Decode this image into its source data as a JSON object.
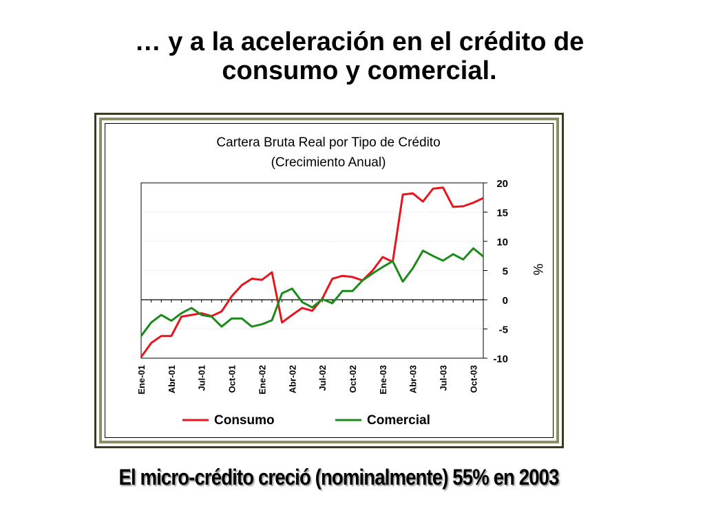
{
  "slide": {
    "title_line1": "… y a la aceleración en el crédito de",
    "title_line2": "consumo y  comercial.",
    "footer": "El micro-crédito creció (nominalmente) 55% en 2003"
  },
  "chart_data": {
    "type": "line",
    "title": "Cartera Bruta Real  por Tipo de Crédito",
    "subtitle": "(Crecimiento Anual)",
    "xlabel": "",
    "ylabel": "%",
    "ylim": [
      -10,
      20
    ],
    "yticks": [
      20,
      15,
      10,
      5,
      0,
      -5,
      -10
    ],
    "xtick_labels": [
      "Ene-01",
      "Abr-01",
      "Jul-01",
      "Oct-01",
      "Ene-02",
      "Abr-02",
      "Jul-02",
      "Oct-02",
      "Ene-03",
      "Abr-03",
      "Jul-03",
      "Oct-03"
    ],
    "grid": "horizontal",
    "legend": "bottom",
    "series": [
      {
        "name": "Consumo",
        "color": "#e8141b",
        "values": [
          -9.8,
          -7.4,
          -6.2,
          -6.2,
          -2.9,
          -2.6,
          -2.3,
          -2.8,
          -2.0,
          0.6,
          2.5,
          3.6,
          3.4,
          4.7,
          -3.9,
          -2.6,
          -1.4,
          -1.9,
          0.2,
          3.6,
          4.1,
          3.9,
          3.3,
          5.0,
          7.3,
          6.5,
          18.0,
          18.2,
          16.8,
          19.0,
          19.2,
          15.9,
          16.0,
          16.6,
          17.4
        ]
      },
      {
        "name": "Comercial",
        "color": "#1a8a1a",
        "values": [
          -6.2,
          -3.9,
          -2.6,
          -3.6,
          -2.3,
          -1.4,
          -2.6,
          -2.9,
          -4.6,
          -3.2,
          -3.2,
          -4.6,
          -4.2,
          -3.5,
          1.1,
          1.9,
          -0.4,
          -1.3,
          0.1,
          -0.6,
          1.5,
          1.5,
          3.3,
          4.5,
          5.6,
          6.6,
          3.1,
          5.4,
          8.4,
          7.5,
          6.7,
          7.8,
          6.9,
          8.8,
          7.4
        ]
      }
    ]
  }
}
